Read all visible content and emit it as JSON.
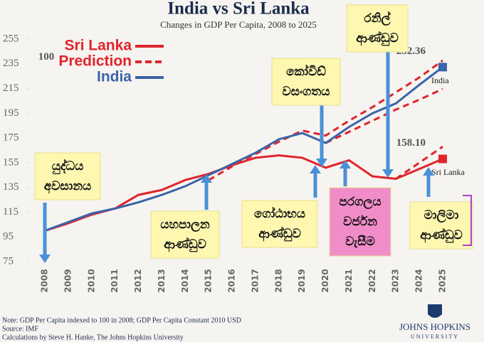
{
  "chart_data": {
    "type": "line",
    "title": "India vs Sri Lanka",
    "subtitle": "Changes in GDP Per Capita, 2008 to 2025",
    "categories": [
      "2008",
      "2009",
      "2010",
      "2011",
      "2012",
      "2013",
      "2014",
      "2015",
      "2016",
      "2017",
      "2018",
      "2019",
      "2020",
      "2021",
      "2022",
      "2023",
      "2024",
      "2025"
    ],
    "ylim": [
      75,
      255
    ],
    "yticks": [
      75,
      95,
      115,
      135,
      155,
      175,
      195,
      215,
      235,
      255
    ],
    "series": [
      {
        "name": "Sri Lanka",
        "color": "#e0242c",
        "dash": false,
        "values": [
          100,
          106,
          113,
          118,
          129,
          133,
          141,
          146,
          153,
          159,
          161,
          159,
          151,
          157,
          144,
          142,
          150,
          158.1
        ],
        "value_labels": [
          null,
          null,
          null,
          null,
          null,
          null,
          null,
          null,
          null,
          null,
          null,
          null,
          null,
          null,
          null,
          null,
          null,
          "158.10"
        ],
        "end_label": "Sri Lanka"
      },
      {
        "name": "Prediction",
        "color": "#e0242c",
        "dash": true,
        "values": [
          null,
          null,
          null,
          null,
          null,
          null,
          null,
          141,
          152,
          162,
          172,
          181,
          177,
          189,
          200,
          212,
          224,
          237.7
        ]
      },
      {
        "name": "India",
        "color": "#3b63a8",
        "dash": false,
        "values": [
          100,
          107,
          114,
          118,
          123,
          129,
          136,
          145,
          154,
          163,
          174,
          179,
          171,
          184,
          195,
          203,
          218,
          232.36
        ],
        "value_labels": [
          "100",
          null,
          null,
          null,
          null,
          null,
          null,
          null,
          null,
          null,
          null,
          null,
          null,
          null,
          null,
          null,
          null,
          "232.36"
        ],
        "end_label": "India"
      }
    ],
    "extra_prediction_lines": [
      {
        "color": "#e0242c",
        "values": [
          null,
          null,
          null,
          null,
          null,
          null,
          null,
          null,
          null,
          null,
          null,
          null,
          171,
          180,
          189,
          198,
          206,
          214.7
        ]
      },
      {
        "color": "#e0242c",
        "values": [
          null,
          null,
          null,
          null,
          null,
          null,
          null,
          null,
          null,
          null,
          null,
          null,
          null,
          null,
          null,
          142,
          155,
          168
        ]
      }
    ],
    "annotations": [
      {
        "lines": [
          "යුද්ධය",
          "අවසානය"
        ]
      },
      {
        "lines": [
          "යහපාලන",
          "ආණ්ඩුව"
        ]
      },
      {
        "lines": [
          "ගෝඨාභය",
          "ආණ්ඩුව"
        ]
      },
      {
        "lines": [
          "කෝවිඩ්",
          "වසංගතය"
        ]
      },
      {
        "lines": [
          "පරගලය",
          "වර්ජන",
          "වැසීම"
        ]
      },
      {
        "lines": [
          "රනිල්",
          "ආණ්ඩුව"
        ]
      },
      {
        "lines": [
          "මාලිමා",
          "ආණ්ඩුව"
        ]
      }
    ],
    "notes": [
      "Note: GDP Per Capita indexed to 100 in 2008; GDP Per Capita Constant 2010 USD",
      "Source: IMF",
      "Calculations by Steve H. Hanke, The Johns Hopkins University"
    ],
    "logo": [
      "JOHNS HOPKINS",
      "UNIVERSITY"
    ]
  }
}
